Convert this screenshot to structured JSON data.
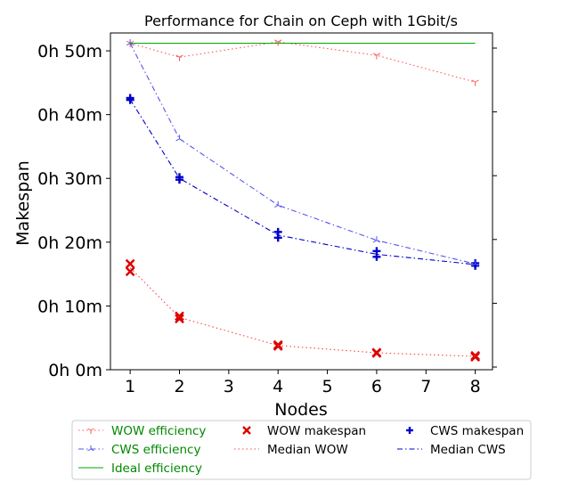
{
  "chart_data": {
    "type": "line",
    "title": "Performance for Chain on Ceph with 1Gbit/s",
    "xlabel": "Nodes",
    "ylabel": "Makespan",
    "xlim": [
      0.6,
      8.35
    ],
    "ylim": [
      0,
      52.8
    ],
    "xticks": [
      1,
      2,
      3,
      4,
      5,
      6,
      7,
      8
    ],
    "xtick_labels": [
      "1",
      "2",
      "3",
      "4",
      "5",
      "6",
      "7",
      "8"
    ],
    "yticks": [
      0,
      10,
      20,
      30,
      40,
      50
    ],
    "ytick_labels": [
      "0h 0m",
      "0h 10m",
      "0h 20m",
      "0h 30m",
      "0h 40m",
      "0h 50m"
    ],
    "y_units": "minutes",
    "secondary_axis": {
      "ticks": 6,
      "labels_visible": false
    },
    "grid": false,
    "legend_position": "bottom",
    "series": [
      {
        "name": "WOW makespan",
        "kind": "marker",
        "marker": "x",
        "color": "#dd0000",
        "legend_color": "#000000",
        "points": [
          [
            1,
            16.6
          ],
          [
            1,
            15.4
          ],
          [
            2,
            8.4
          ],
          [
            2,
            8.0
          ],
          [
            4,
            3.9
          ],
          [
            4,
            3.7
          ],
          [
            6,
            2.7
          ],
          [
            6,
            2.6
          ],
          [
            8,
            2.2
          ],
          [
            8,
            2.0
          ]
        ]
      },
      {
        "name": "Median WOW",
        "kind": "line",
        "style": "dotted",
        "color": "#ff4444",
        "legend_color": "#000000",
        "points": [
          [
            1,
            16.0
          ],
          [
            2,
            8.2
          ],
          [
            4,
            3.8
          ],
          [
            6,
            2.65
          ],
          [
            8,
            2.1
          ]
        ]
      },
      {
        "name": "CWS makespan",
        "kind": "marker",
        "marker": "+",
        "color": "#0000cc",
        "legend_color": "#000000",
        "points": [
          [
            1,
            42.6
          ],
          [
            1,
            42.3
          ],
          [
            2,
            30.2
          ],
          [
            2,
            29.8
          ],
          [
            4,
            21.6
          ],
          [
            4,
            20.7
          ],
          [
            6,
            18.6
          ],
          [
            6,
            17.7
          ],
          [
            8,
            16.7
          ],
          [
            8,
            16.3
          ]
        ]
      },
      {
        "name": "Median CWS",
        "kind": "line",
        "style": "dashdot",
        "color": "#0000cc",
        "legend_color": "#000000",
        "points": [
          [
            1,
            42.4
          ],
          [
            2,
            30.0
          ],
          [
            4,
            21.1
          ],
          [
            6,
            18.1
          ],
          [
            8,
            16.5
          ]
        ]
      },
      {
        "name": "WOW efficiency",
        "kind": "line_marker",
        "style": "dotted",
        "marker": "tri_down",
        "color": "#ff5555",
        "legend_color": "#008800",
        "points": [
          [
            1,
            51.2
          ],
          [
            2,
            49.0
          ],
          [
            4,
            51.4
          ],
          [
            6,
            49.3
          ],
          [
            8,
            45.1
          ]
        ]
      },
      {
        "name": "CWS efficiency",
        "kind": "line_marker",
        "style": "dashdot",
        "marker": "tri_up",
        "color": "#5555ee",
        "legend_color": "#008800",
        "points": [
          [
            1,
            51.2
          ],
          [
            2,
            36.2
          ],
          [
            4,
            25.8
          ],
          [
            6,
            20.3
          ],
          [
            8,
            16.6
          ]
        ]
      },
      {
        "name": "Ideal efficiency",
        "kind": "line",
        "style": "solid",
        "color": "#00aa00",
        "legend_color": "#008800",
        "points": [
          [
            1,
            51.2
          ],
          [
            8,
            51.2
          ]
        ]
      }
    ],
    "legend": [
      [
        "WOW efficiency",
        "WOW makespan",
        "CWS makespan"
      ],
      [
        "CWS efficiency",
        "Median WOW",
        "Median CWS"
      ],
      [
        "Ideal efficiency"
      ]
    ]
  }
}
